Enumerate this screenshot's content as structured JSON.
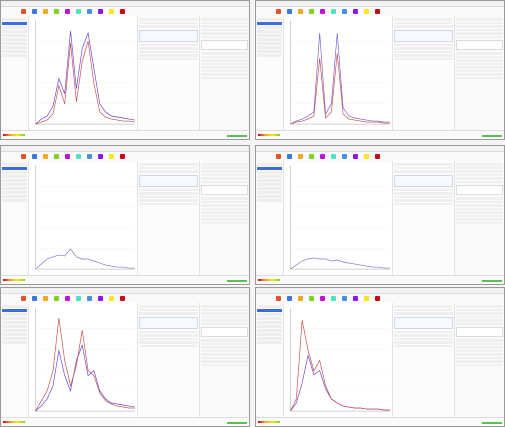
{
  "windows": [
    {
      "id": "w1",
      "x": 0,
      "y": 0,
      "accent": "#5a33b7",
      "series": [
        {
          "color": "#6b3fc9",
          "values": [
            0,
            0.05,
            0.08,
            0.18,
            0.45,
            0.3,
            0.92,
            0.35,
            0.75,
            0.9,
            0.55,
            0.2,
            0.12,
            0.08,
            0.07,
            0.06,
            0.05,
            0.04
          ]
        },
        {
          "color": "#c54848",
          "values": [
            0,
            0.02,
            0.04,
            0.1,
            0.38,
            0.2,
            0.8,
            0.22,
            0.62,
            0.82,
            0.4,
            0.12,
            0.07,
            0.05,
            0.04,
            0.03,
            0.03,
            0.02
          ]
        }
      ]
    },
    {
      "id": "w2",
      "x": 255,
      "y": 0,
      "accent": "#5a33b7",
      "series": [
        {
          "color": "#7a5ad2",
          "values": [
            0,
            0.03,
            0.05,
            0.08,
            0.12,
            0.9,
            0.1,
            0.2,
            0.9,
            0.16,
            0.08,
            0.06,
            0.05,
            0.04,
            0.03,
            0.03,
            0.02,
            0.02
          ]
        },
        {
          "color": "#c54848",
          "values": [
            0,
            0.02,
            0.03,
            0.05,
            0.08,
            0.65,
            0.06,
            0.12,
            0.7,
            0.1,
            0.05,
            0.04,
            0.03,
            0.02,
            0.02,
            0.02,
            0.01,
            0.01
          ]
        }
      ]
    },
    {
      "id": "w3",
      "x": 0,
      "y": 145,
      "accent": "#5a33b7",
      "series": [
        {
          "color": "#8a70c8",
          "values": [
            0,
            0.05,
            0.1,
            0.12,
            0.14,
            0.13,
            0.2,
            0.12,
            0.1,
            0.1,
            0.08,
            0.06,
            0.04,
            0.03,
            0.02,
            0.02,
            0.01,
            0.01
          ]
        }
      ]
    },
    {
      "id": "w4",
      "x": 255,
      "y": 145,
      "accent": "#5a33b7",
      "series": [
        {
          "color": "#8a70c8",
          "values": [
            0,
            0.04,
            0.08,
            0.1,
            0.11,
            0.1,
            0.1,
            0.08,
            0.09,
            0.07,
            0.06,
            0.05,
            0.04,
            0.03,
            0.02,
            0.02,
            0.01,
            0.01
          ]
        }
      ]
    },
    {
      "id": "w5",
      "x": 0,
      "y": 287,
      "accent": "#5a33b7",
      "series": [
        {
          "color": "#6b3fc9",
          "values": [
            0,
            0.05,
            0.12,
            0.25,
            0.6,
            0.35,
            0.2,
            0.5,
            0.65,
            0.35,
            0.4,
            0.2,
            0.12,
            0.08,
            0.07,
            0.06,
            0.05,
            0.04
          ]
        },
        {
          "color": "#c54848",
          "values": [
            0,
            0.1,
            0.2,
            0.4,
            0.92,
            0.5,
            0.25,
            0.45,
            0.8,
            0.4,
            0.35,
            0.18,
            0.1,
            0.07,
            0.05,
            0.04,
            0.03,
            0.03
          ]
        }
      ]
    },
    {
      "id": "w6",
      "x": 255,
      "y": 287,
      "accent": "#5a33b7",
      "series": [
        {
          "color": "#6b3fc9",
          "values": [
            0,
            0.08,
            0.28,
            0.55,
            0.36,
            0.4,
            0.22,
            0.12,
            0.08,
            0.05,
            0.04,
            0.03,
            0.03,
            0.02,
            0.02,
            0.02,
            0.01,
            0.01
          ]
        },
        {
          "color": "#c54848",
          "values": [
            0,
            0.12,
            0.9,
            0.6,
            0.4,
            0.5,
            0.25,
            0.12,
            0.08,
            0.05,
            0.04,
            0.03,
            0.03,
            0.02,
            0.02,
            0.02,
            0.01,
            0.01
          ]
        }
      ]
    }
  ],
  "icons": [
    "toolbar-icon-1",
    "toolbar-icon-2",
    "toolbar-icon-3",
    "toolbar-icon-4",
    "toolbar-icon-5",
    "toolbar-icon-6",
    "toolbar-icon-7",
    "toolbar-icon-8",
    "toolbar-icon-9",
    "toolbar-icon-10"
  ],
  "toolbar_colors": [
    "#e6522c",
    "#3b78d8",
    "#f5a623",
    "#7ed321",
    "#bd10e0",
    "#50e3c2",
    "#4a90e2",
    "#9013fe",
    "#f8e71c",
    "#d0021b"
  ]
}
